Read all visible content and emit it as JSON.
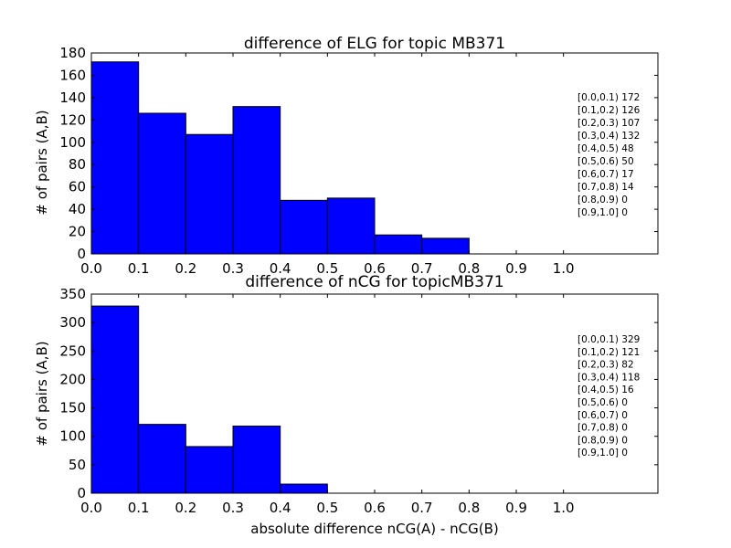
{
  "chart_data": [
    {
      "type": "bar",
      "title": "difference of ELG for topic MB371",
      "xlabel": "",
      "ylabel": "# of pairs (A,B)",
      "bin_edges": [
        0.0,
        0.1,
        0.2,
        0.3,
        0.4,
        0.5,
        0.6,
        0.7,
        0.8,
        0.9,
        1.0
      ],
      "values": [
        172,
        126,
        107,
        132,
        48,
        50,
        17,
        14,
        0,
        0
      ],
      "xlim": [
        0.0,
        1.2
      ],
      "ylim": [
        0,
        180
      ],
      "xticks": [
        "0.0",
        "0.1",
        "0.2",
        "0.3",
        "0.4",
        "0.5",
        "0.6",
        "0.7",
        "0.8",
        "0.9",
        "1.0"
      ],
      "yticks": [
        "0",
        "20",
        "40",
        "60",
        "80",
        "100",
        "120",
        "140",
        "160",
        "180"
      ],
      "annotations": [
        "[0.0,0.1) 172",
        "[0.1,0.2) 126",
        "[0.2,0.3) 107",
        "[0.3,0.4) 132",
        "[0.4,0.5) 48",
        "[0.5,0.6) 50",
        "[0.6,0.7) 17",
        "[0.7,0.8) 14",
        "[0.8,0.9) 0",
        "[0.9,1.0] 0"
      ],
      "bar_color": "#0000ff",
      "grid": false
    },
    {
      "type": "bar",
      "title": "difference of nCG for topicMB371",
      "xlabel": "absolute difference nCG(A) - nCG(B)",
      "ylabel": "# of pairs (A,B)",
      "bin_edges": [
        0.0,
        0.1,
        0.2,
        0.3,
        0.4,
        0.5,
        0.6,
        0.7,
        0.8,
        0.9,
        1.0
      ],
      "values": [
        329,
        121,
        82,
        118,
        16,
        0,
        0,
        0,
        0,
        0
      ],
      "xlim": [
        0.0,
        1.2
      ],
      "ylim": [
        0,
        350
      ],
      "xticks": [
        "0.0",
        "0.1",
        "0.2",
        "0.3",
        "0.4",
        "0.5",
        "0.6",
        "0.7",
        "0.8",
        "0.9",
        "1.0"
      ],
      "yticks": [
        "0",
        "50",
        "100",
        "150",
        "200",
        "250",
        "300",
        "350"
      ],
      "annotations": [
        "[0.0,0.1) 329",
        "[0.1,0.2) 121",
        "[0.2,0.3) 82",
        "[0.3,0.4) 118",
        "[0.4,0.5) 16",
        "[0.5,0.6) 0",
        "[0.6,0.7) 0",
        "[0.7,0.8) 0",
        "[0.8,0.9) 0",
        "[0.9,1.0] 0"
      ],
      "bar_color": "#0000ff",
      "grid": false
    }
  ]
}
